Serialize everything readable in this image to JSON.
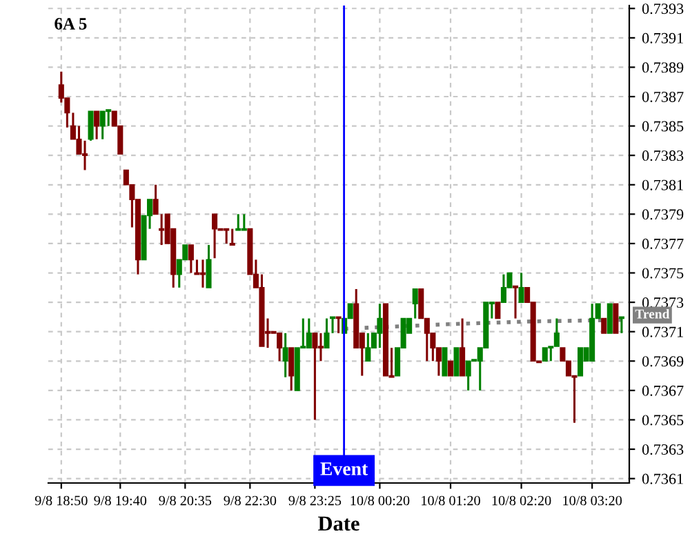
{
  "chart_data": {
    "type": "candlestick",
    "title": "6A 5",
    "xlabel": "Date",
    "categories": [
      "9/8 18:50",
      null,
      null,
      null,
      null,
      null,
      null,
      null,
      null,
      null,
      "9/8 19:40",
      null,
      null,
      null,
      null,
      null,
      null,
      null,
      null,
      null,
      null,
      "9/8 20:35",
      null,
      null,
      null,
      null,
      null,
      null,
      null,
      null,
      null,
      null,
      "9/8 22:30",
      null,
      null,
      null,
      null,
      null,
      null,
      null,
      null,
      null,
      null,
      "9/8 23:25",
      null,
      null,
      null,
      null,
      null,
      null,
      null,
      null,
      null,
      null,
      "10/8 00:20",
      null,
      null,
      null,
      null,
      null,
      null,
      null,
      null,
      null,
      null,
      null,
      "10/8 01:20",
      null,
      null,
      null,
      null,
      null,
      null,
      null,
      null,
      null,
      null,
      null,
      "10/8 02:20",
      null,
      null,
      null,
      null,
      null,
      null,
      null,
      null,
      null,
      null,
      null,
      "10/8 03:20",
      null,
      null,
      null,
      null,
      null
    ],
    "ohlc": [
      [
        0.73878,
        0.73887,
        0.73866,
        0.73869
      ],
      [
        0.73869,
        0.73869,
        0.73849,
        0.73859
      ],
      [
        0.7385,
        0.73859,
        0.73841,
        0.73841
      ],
      [
        0.73841,
        0.7385,
        0.73831,
        0.73831
      ],
      [
        0.73831,
        0.7384,
        0.7382,
        0.7383
      ],
      [
        0.73841,
        0.7386,
        0.7384,
        0.7386
      ],
      [
        0.7386,
        0.7386,
        0.73841,
        0.7385
      ],
      [
        0.7385,
        0.7386,
        0.73841,
        0.7386
      ],
      [
        0.7386,
        0.73861,
        0.7385,
        0.73861
      ],
      [
        0.7386,
        0.7386,
        0.7385,
        0.7385
      ],
      [
        0.7385,
        0.7385,
        0.73831,
        0.73831
      ],
      [
        0.7382,
        0.7382,
        0.7381,
        0.7381
      ],
      [
        0.7381,
        0.7381,
        0.73781,
        0.738
      ],
      [
        0.738,
        0.738,
        0.73749,
        0.73759
      ],
      [
        0.73759,
        0.73789,
        0.73759,
        0.73789
      ],
      [
        0.73789,
        0.738,
        0.7378,
        0.738
      ],
      [
        0.738,
        0.7381,
        0.7379,
        0.7379
      ],
      [
        0.7378,
        0.7379,
        0.73769,
        0.73779
      ],
      [
        0.7379,
        0.7379,
        0.7377,
        0.7377
      ],
      [
        0.7378,
        0.7378,
        0.7374,
        0.73749
      ],
      [
        0.73749,
        0.73759,
        0.7374,
        0.73759
      ],
      [
        0.73759,
        0.73769,
        0.73759,
        0.73769
      ],
      [
        0.73769,
        0.73769,
        0.7375,
        0.73759
      ],
      [
        0.7375,
        0.73759,
        0.73749,
        0.73749
      ],
      [
        0.7375,
        0.73759,
        0.7374,
        0.73749
      ],
      [
        0.7374,
        0.73769,
        0.7374,
        0.73759
      ],
      [
        0.7379,
        0.7379,
        0.7376,
        0.7378
      ],
      [
        0.7378,
        0.7378,
        0.73779,
        0.73779
      ],
      [
        0.7378,
        0.7378,
        0.7377,
        0.73779
      ],
      [
        0.7377,
        0.7378,
        0.73769,
        0.73769
      ],
      [
        0.73779,
        0.7379,
        0.73779,
        0.7378
      ],
      [
        0.73779,
        0.7379,
        0.73779,
        0.7378
      ],
      [
        0.7378,
        0.7378,
        0.73749,
        0.73749
      ],
      [
        0.73749,
        0.73759,
        0.7374,
        0.7374
      ],
      [
        0.7374,
        0.73749,
        0.737,
        0.737
      ],
      [
        0.7371,
        0.73719,
        0.73699,
        0.73709
      ],
      [
        0.7371,
        0.7371,
        0.73709,
        0.73709
      ],
      [
        0.73709,
        0.73709,
        0.7369,
        0.73699
      ],
      [
        0.7369,
        0.73709,
        0.73679,
        0.73699
      ],
      [
        0.73699,
        0.73699,
        0.7367,
        0.7368
      ],
      [
        0.7367,
        0.73699,
        0.7367,
        0.73699
      ],
      [
        0.73699,
        0.73719,
        0.73699,
        0.737
      ],
      [
        0.73699,
        0.73719,
        0.73699,
        0.73709
      ],
      [
        0.73709,
        0.73709,
        0.7365,
        0.73699
      ],
      [
        0.737,
        0.73709,
        0.7369,
        0.73699
      ],
      [
        0.73699,
        0.73719,
        0.73699,
        0.73709
      ],
      [
        0.73719,
        0.7372,
        0.73709,
        0.7372
      ],
      [
        0.7372,
        0.7372,
        0.73709,
        0.73719
      ],
      [
        0.73709,
        0.73719,
        0.73709,
        0.73719
      ],
      [
        0.73719,
        0.73729,
        0.73719,
        0.73729
      ],
      [
        0.73729,
        0.73739,
        0.73699,
        0.73699
      ],
      [
        0.73709,
        0.73709,
        0.7368,
        0.73699
      ],
      [
        0.7369,
        0.73709,
        0.7369,
        0.73699
      ],
      [
        0.73699,
        0.73709,
        0.73699,
        0.73709
      ],
      [
        0.73709,
        0.73729,
        0.73699,
        0.73719
      ],
      [
        0.73729,
        0.73729,
        0.7368,
        0.7368
      ],
      [
        0.7368,
        0.73699,
        0.73679,
        0.73679
      ],
      [
        0.7368,
        0.73699,
        0.7368,
        0.73699
      ],
      [
        0.73699,
        0.73719,
        0.73699,
        0.73719
      ],
      [
        0.73709,
        0.73719,
        0.73709,
        0.73719
      ],
      [
        0.73729,
        0.73739,
        0.73719,
        0.73739
      ],
      [
        0.73739,
        0.73739,
        0.73719,
        0.73719
      ],
      [
        0.73719,
        0.73719,
        0.7369,
        0.73709
      ],
      [
        0.73709,
        0.73709,
        0.7369,
        0.73699
      ],
      [
        0.73699,
        0.73699,
        0.7368,
        0.7369
      ],
      [
        0.7368,
        0.73699,
        0.7368,
        0.73699
      ],
      [
        0.7369,
        0.7369,
        0.7368,
        0.7368
      ],
      [
        0.7368,
        0.73699,
        0.7368,
        0.73699
      ],
      [
        0.73699,
        0.73719,
        0.7368,
        0.7368
      ],
      [
        0.7368,
        0.7369,
        0.7367,
        0.7369
      ],
      [
        0.7369,
        0.73691,
        0.7369,
        0.73691
      ],
      [
        0.7369,
        0.73699,
        0.7367,
        0.73699
      ],
      [
        0.73699,
        0.7373,
        0.73699,
        0.7373
      ],
      [
        0.73729,
        0.7373,
        0.73719,
        0.7373
      ],
      [
        0.7373,
        0.7373,
        0.73719,
        0.73719
      ],
      [
        0.7373,
        0.73749,
        0.7373,
        0.7374
      ],
      [
        0.7374,
        0.7375,
        0.7374,
        0.7375
      ],
      [
        0.73741,
        0.73741,
        0.73719,
        0.7374
      ],
      [
        0.7373,
        0.7375,
        0.7373,
        0.7374
      ],
      [
        0.7374,
        0.7374,
        0.7373,
        0.7373
      ],
      [
        0.7373,
        0.7373,
        0.7369,
        0.7369
      ],
      [
        0.7369,
        0.7369,
        0.73689,
        0.73689
      ],
      [
        0.7369,
        0.73699,
        0.7369,
        0.73699
      ],
      [
        0.73699,
        0.737,
        0.7369,
        0.737
      ],
      [
        0.737,
        0.73719,
        0.737,
        0.73709
      ],
      [
        0.73699,
        0.73699,
        0.7369,
        0.7369
      ],
      [
        0.7369,
        0.7369,
        0.7368,
        0.7368
      ],
      [
        0.7368,
        0.7368,
        0.73648,
        0.73679
      ],
      [
        0.7368,
        0.73699,
        0.7368,
        0.73699
      ],
      [
        0.7369,
        0.73699,
        0.7369,
        0.73699
      ],
      [
        0.7369,
        0.73729,
        0.7369,
        0.73719
      ],
      [
        0.73719,
        0.73729,
        0.73719,
        0.73729
      ],
      [
        0.73719,
        0.73719,
        0.73709,
        0.73709
      ],
      [
        0.73709,
        0.73729,
        0.73709,
        0.73729
      ],
      [
        0.73729,
        0.73729,
        0.73709,
        0.73709
      ],
      [
        0.73719,
        0.7372,
        0.73709,
        0.7372
      ]
    ],
    "colors": [
      "#800000",
      "#800000",
      "#800000",
      "#800000",
      "#800000",
      "#008000",
      "#800000",
      "#008000",
      "#008000",
      "#800000",
      "#800000",
      "#800000",
      "#800000",
      "#800000",
      "#008000",
      "#008000",
      "#800000",
      "#800000",
      "#800000",
      "#800000",
      "#008000",
      "#008000",
      "#800000",
      "#800000",
      "#800000",
      "#008000",
      "#800000",
      "#800000",
      "#800000",
      "#800000",
      "#008000",
      "#008000",
      "#800000",
      "#800000",
      "#800000",
      "#800000",
      "#800000",
      "#800000",
      "#008000",
      "#800000",
      "#008000",
      "#008000",
      "#008000",
      "#800000",
      "#800000",
      "#008000",
      "#008000",
      "#800000",
      "#008000",
      "#008000",
      "#800000",
      "#800000",
      "#008000",
      "#008000",
      "#008000",
      "#800000",
      "#800000",
      "#008000",
      "#008000",
      "#008000",
      "#008000",
      "#800000",
      "#800000",
      "#800000",
      "#800000",
      "#008000",
      "#800000",
      "#008000",
      "#800000",
      "#008000",
      "#008000",
      "#008000",
      "#008000",
      "#008000",
      "#800000",
      "#008000",
      "#008000",
      "#800000",
      "#008000",
      "#800000",
      "#800000",
      "#800000",
      "#008000",
      "#008000",
      "#008000",
      "#800000",
      "#800000",
      "#800000",
      "#008000",
      "#008000",
      "#008000",
      "#008000",
      "#800000",
      "#008000",
      "#800000",
      "#008000"
    ],
    "series": [
      {
        "type": "line",
        "name": "Trend",
        "color": "#808080",
        "line_style": "dotted",
        "values": [
          null,
          null,
          null,
          null,
          null,
          null,
          null,
          null,
          null,
          null,
          null,
          null,
          null,
          null,
          null,
          null,
          null,
          null,
          null,
          null,
          null,
          null,
          null,
          null,
          null,
          null,
          null,
          null,
          null,
          null,
          null,
          null,
          null,
          null,
          null,
          null,
          null,
          null,
          null,
          null,
          null,
          null,
          null,
          null,
          null,
          null,
          null,
          null,
          0.73712,
          null,
          null,
          null,
          null,
          null,
          null,
          null,
          null,
          null,
          null,
          null,
          null,
          null,
          null,
          null,
          null,
          0.73715,
          null,
          null,
          null,
          null,
          null,
          null,
          null,
          null,
          null,
          null,
          null,
          null,
          null,
          null,
          0.73717,
          null,
          null,
          null,
          null,
          null,
          null,
          null,
          null,
          null,
          null,
          null,
          null,
          null,
          null,
          0.73718
        ]
      }
    ],
    "annotations": [
      "Event"
    ],
    "ylim": [
      0.73607,
      0.73932
    ],
    "yticks": [
      0.7361,
      0.7363,
      0.7365,
      0.7367,
      0.7369,
      0.7371,
      0.7373,
      0.7375,
      0.7377,
      0.7379,
      0.7381,
      0.7383,
      0.7385,
      0.7387,
      0.7389,
      0.7391,
      0.7393
    ],
    "grid": true
  }
}
